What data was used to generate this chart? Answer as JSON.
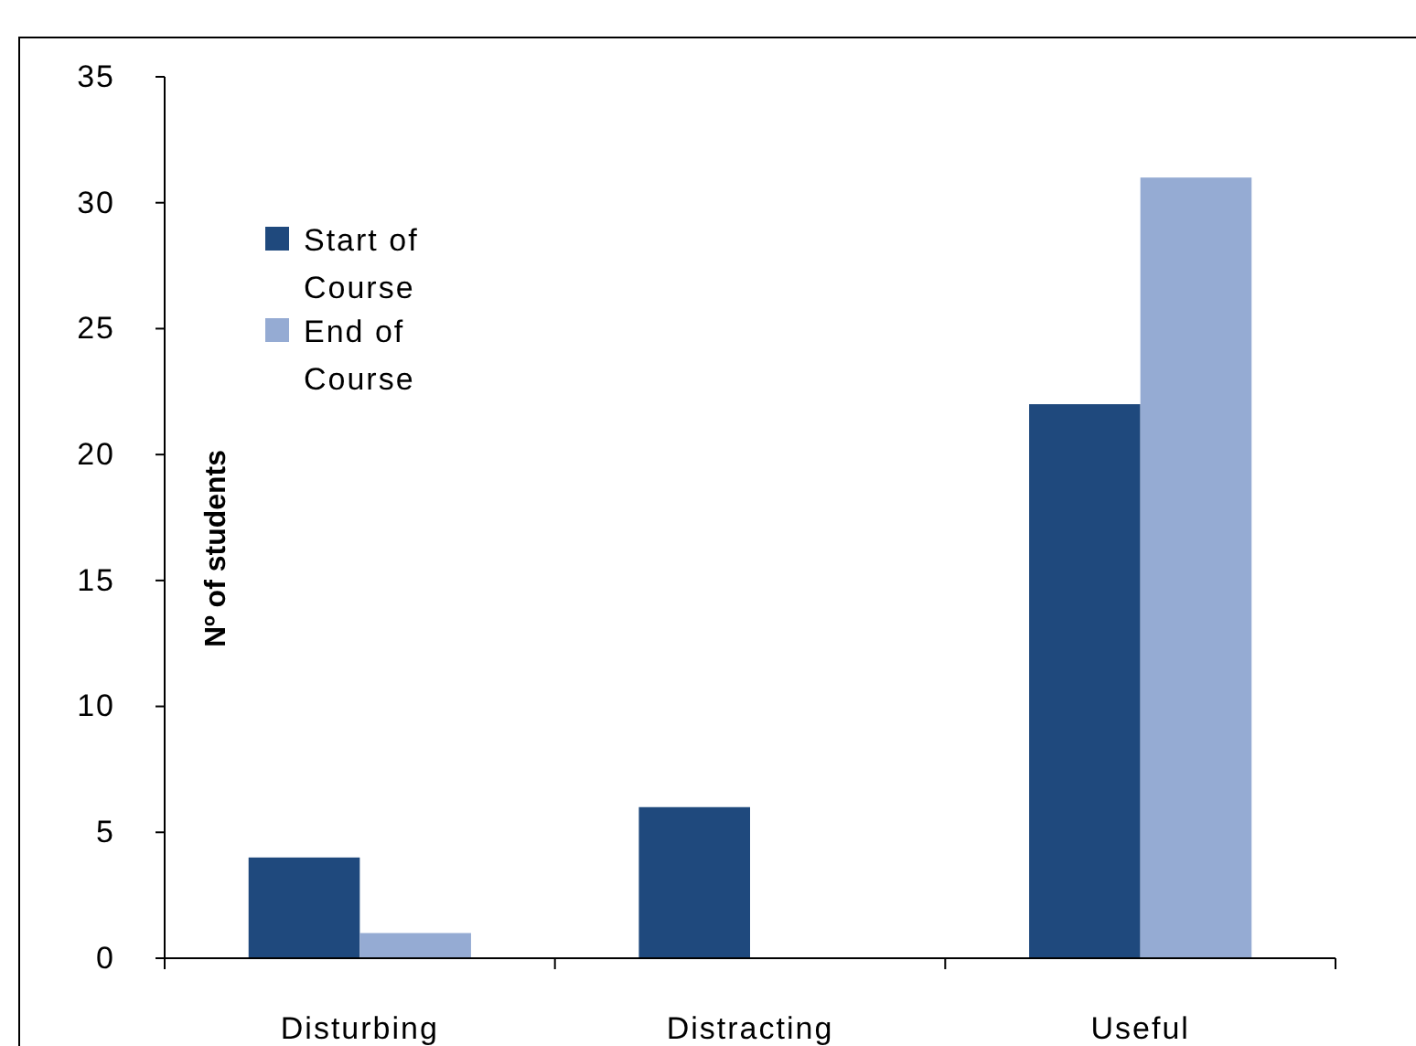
{
  "chart_data": {
    "type": "bar",
    "ylabel": "Nº of students",
    "categories": [
      "Disturbing",
      "Distracting",
      "Useful"
    ],
    "series": [
      {
        "name": "Start of Course",
        "color": "#1f497d",
        "values": [
          4,
          6,
          22
        ]
      },
      {
        "name": "End of Course",
        "color": "#95abd3",
        "values": [
          1,
          0,
          31
        ]
      }
    ],
    "ylim": [
      0,
      35
    ],
    "yticks": [
      0,
      5,
      10,
      15,
      20,
      25,
      30,
      35
    ],
    "grid": false,
    "legend": "top left"
  }
}
